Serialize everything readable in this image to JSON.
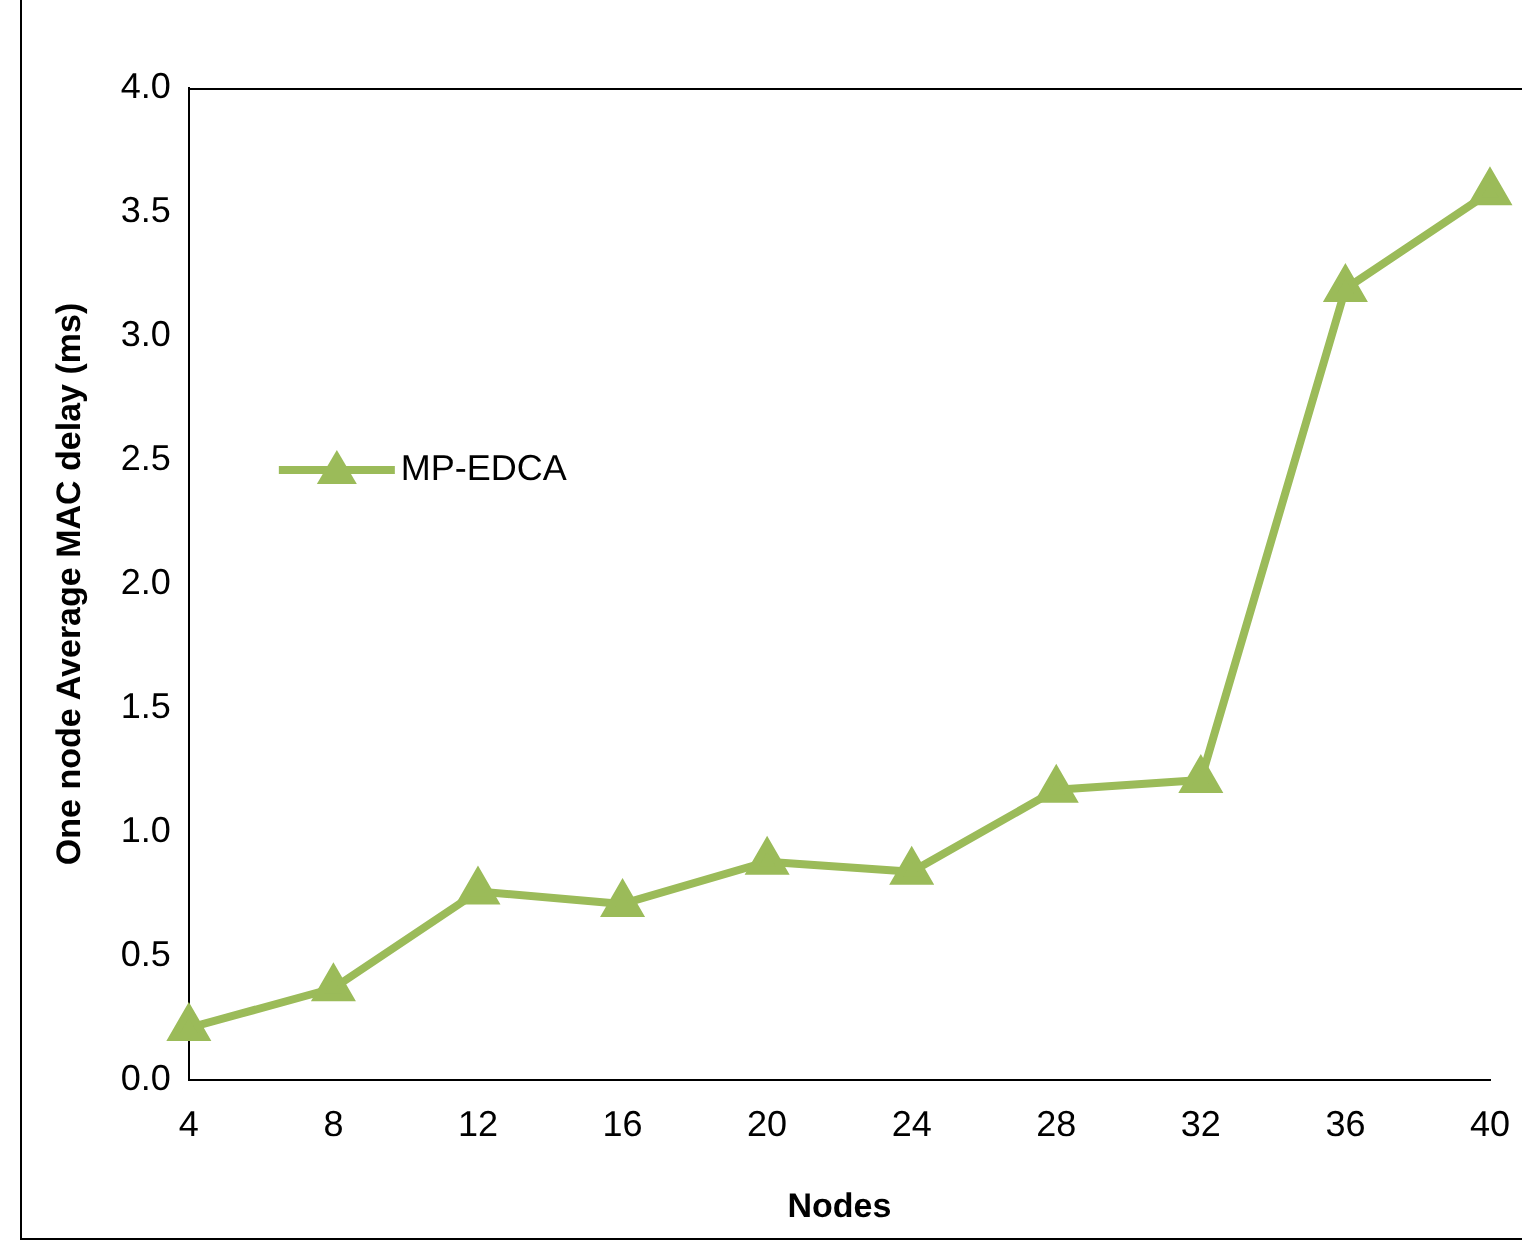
{
  "chart_data": {
    "type": "line",
    "xlabel": "Nodes",
    "ylabel": "One node Average MAC delay (ms)",
    "categories": [
      "4",
      "8",
      "12",
      "16",
      "20",
      "24",
      "28",
      "32",
      "36",
      "40"
    ],
    "series": [
      {
        "name": "MP-EDCA",
        "color": "#9bbb59",
        "values": [
          0.21,
          0.37,
          0.76,
          0.71,
          0.88,
          0.84,
          1.17,
          1.21,
          3.19,
          3.58
        ]
      }
    ],
    "ylim": [
      0,
      4
    ],
    "yticks": [
      {
        "value": 0,
        "label": "0.0"
      },
      {
        "value": 0.5,
        "label": "0.5"
      },
      {
        "value": 1,
        "label": "1.0"
      },
      {
        "value": 1.5,
        "label": "1.5"
      },
      {
        "value": 2,
        "label": "2.0"
      },
      {
        "value": 2.5,
        "label": "2.5"
      },
      {
        "value": 3,
        "label": "3.0"
      },
      {
        "value": 3.5,
        "label": "3.5"
      },
      {
        "value": 4,
        "label": "4.0"
      }
    ],
    "grid": false,
    "legend": "left",
    "marker": "triangle",
    "line_style": "solid"
  }
}
